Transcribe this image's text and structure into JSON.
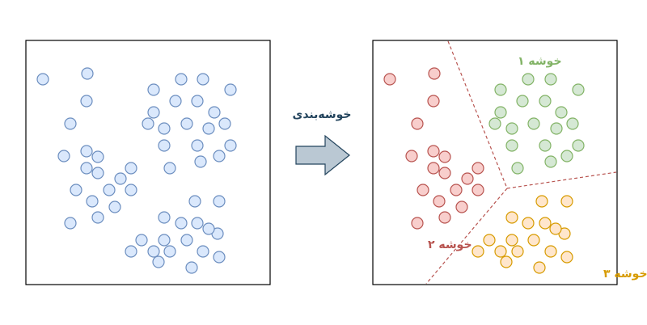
{
  "arrow_label": "خوشه‌بندی",
  "cluster_labels": [
    "خوشه ۱",
    "خوشه ۲",
    "خوشه ۳"
  ],
  "colors": {
    "unclustered_fill": "#dae8fc",
    "unclustered_stroke": "#6c8ebf",
    "cluster1_fill": "#d5e8d4",
    "cluster1_stroke": "#82b366",
    "cluster2_fill": "#f8cecc",
    "cluster2_stroke": "#b85450",
    "cluster3_fill": "#ffe6cc",
    "cluster3_stroke": "#d79b00",
    "label1": "#82b366",
    "label2": "#b85450",
    "label3": "#d79b00",
    "arrow_fill": "#bac8d3",
    "arrow_stroke": "#23445d"
  }
}
